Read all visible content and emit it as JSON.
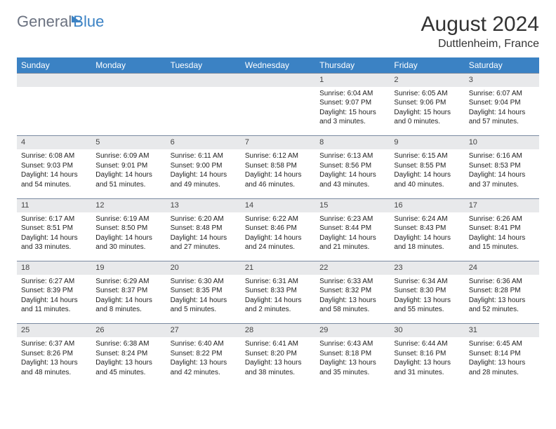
{
  "logo": {
    "text1": "General",
    "text2": "Blue"
  },
  "title": "August 2024",
  "location": "Duttlenheim, France",
  "header_bg": "#3b82c4",
  "daynum_bg": "#e8e9eb",
  "border_color": "#7a8aa0",
  "days": [
    "Sunday",
    "Monday",
    "Tuesday",
    "Wednesday",
    "Thursday",
    "Friday",
    "Saturday"
  ],
  "weeks": [
    [
      null,
      null,
      null,
      null,
      {
        "n": "1",
        "sr": "6:04 AM",
        "ss": "9:07 PM",
        "dl": "15 hours and 3 minutes."
      },
      {
        "n": "2",
        "sr": "6:05 AM",
        "ss": "9:06 PM",
        "dl": "15 hours and 0 minutes."
      },
      {
        "n": "3",
        "sr": "6:07 AM",
        "ss": "9:04 PM",
        "dl": "14 hours and 57 minutes."
      }
    ],
    [
      {
        "n": "4",
        "sr": "6:08 AM",
        "ss": "9:03 PM",
        "dl": "14 hours and 54 minutes."
      },
      {
        "n": "5",
        "sr": "6:09 AM",
        "ss": "9:01 PM",
        "dl": "14 hours and 51 minutes."
      },
      {
        "n": "6",
        "sr": "6:11 AM",
        "ss": "9:00 PM",
        "dl": "14 hours and 49 minutes."
      },
      {
        "n": "7",
        "sr": "6:12 AM",
        "ss": "8:58 PM",
        "dl": "14 hours and 46 minutes."
      },
      {
        "n": "8",
        "sr": "6:13 AM",
        "ss": "8:56 PM",
        "dl": "14 hours and 43 minutes."
      },
      {
        "n": "9",
        "sr": "6:15 AM",
        "ss": "8:55 PM",
        "dl": "14 hours and 40 minutes."
      },
      {
        "n": "10",
        "sr": "6:16 AM",
        "ss": "8:53 PM",
        "dl": "14 hours and 37 minutes."
      }
    ],
    [
      {
        "n": "11",
        "sr": "6:17 AM",
        "ss": "8:51 PM",
        "dl": "14 hours and 33 minutes."
      },
      {
        "n": "12",
        "sr": "6:19 AM",
        "ss": "8:50 PM",
        "dl": "14 hours and 30 minutes."
      },
      {
        "n": "13",
        "sr": "6:20 AM",
        "ss": "8:48 PM",
        "dl": "14 hours and 27 minutes."
      },
      {
        "n": "14",
        "sr": "6:22 AM",
        "ss": "8:46 PM",
        "dl": "14 hours and 24 minutes."
      },
      {
        "n": "15",
        "sr": "6:23 AM",
        "ss": "8:44 PM",
        "dl": "14 hours and 21 minutes."
      },
      {
        "n": "16",
        "sr": "6:24 AM",
        "ss": "8:43 PM",
        "dl": "14 hours and 18 minutes."
      },
      {
        "n": "17",
        "sr": "6:26 AM",
        "ss": "8:41 PM",
        "dl": "14 hours and 15 minutes."
      }
    ],
    [
      {
        "n": "18",
        "sr": "6:27 AM",
        "ss": "8:39 PM",
        "dl": "14 hours and 11 minutes."
      },
      {
        "n": "19",
        "sr": "6:29 AM",
        "ss": "8:37 PM",
        "dl": "14 hours and 8 minutes."
      },
      {
        "n": "20",
        "sr": "6:30 AM",
        "ss": "8:35 PM",
        "dl": "14 hours and 5 minutes."
      },
      {
        "n": "21",
        "sr": "6:31 AM",
        "ss": "8:33 PM",
        "dl": "14 hours and 2 minutes."
      },
      {
        "n": "22",
        "sr": "6:33 AM",
        "ss": "8:32 PM",
        "dl": "13 hours and 58 minutes."
      },
      {
        "n": "23",
        "sr": "6:34 AM",
        "ss": "8:30 PM",
        "dl": "13 hours and 55 minutes."
      },
      {
        "n": "24",
        "sr": "6:36 AM",
        "ss": "8:28 PM",
        "dl": "13 hours and 52 minutes."
      }
    ],
    [
      {
        "n": "25",
        "sr": "6:37 AM",
        "ss": "8:26 PM",
        "dl": "13 hours and 48 minutes."
      },
      {
        "n": "26",
        "sr": "6:38 AM",
        "ss": "8:24 PM",
        "dl": "13 hours and 45 minutes."
      },
      {
        "n": "27",
        "sr": "6:40 AM",
        "ss": "8:22 PM",
        "dl": "13 hours and 42 minutes."
      },
      {
        "n": "28",
        "sr": "6:41 AM",
        "ss": "8:20 PM",
        "dl": "13 hours and 38 minutes."
      },
      {
        "n": "29",
        "sr": "6:43 AM",
        "ss": "8:18 PM",
        "dl": "13 hours and 35 minutes."
      },
      {
        "n": "30",
        "sr": "6:44 AM",
        "ss": "8:16 PM",
        "dl": "13 hours and 31 minutes."
      },
      {
        "n": "31",
        "sr": "6:45 AM",
        "ss": "8:14 PM",
        "dl": "13 hours and 28 minutes."
      }
    ]
  ],
  "labels": {
    "sunrise": "Sunrise: ",
    "sunset": "Sunset: ",
    "daylight": "Daylight: "
  }
}
